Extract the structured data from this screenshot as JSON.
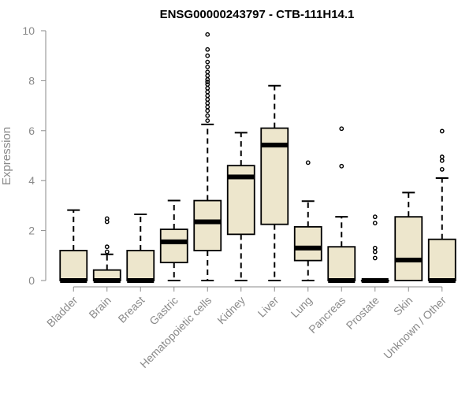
{
  "chart_data": {
    "type": "boxplot",
    "title": "ENSG00000243797 - CTB-111H14.1",
    "xlabel": "",
    "ylabel": "Expression",
    "ylim": [
      0,
      10
    ],
    "yticks": [
      0,
      2,
      4,
      6,
      8,
      10
    ],
    "box_fill": "#ede6cc",
    "categories": [
      "Bladder",
      "Brain",
      "Breast",
      "Gastric",
      "Hematopoietic cells",
      "Kidney",
      "Liver",
      "Lung",
      "Pancreas",
      "Prostate",
      "Skin",
      "Unknown / Other"
    ],
    "boxes": [
      {
        "q1": 0,
        "median": 0,
        "q3": 1.2,
        "whisker_low": 0,
        "whisker_high": 2.82,
        "outliers": []
      },
      {
        "q1": 0,
        "median": 0,
        "q3": 0.42,
        "whisker_low": 0,
        "whisker_high": 1.05,
        "outliers": [
          1.15,
          1.35,
          2.35,
          2.48
        ]
      },
      {
        "q1": 0,
        "median": 0,
        "q3": 1.2,
        "whisker_low": 0,
        "whisker_high": 2.65,
        "outliers": []
      },
      {
        "q1": 0.72,
        "median": 1.55,
        "q3": 2.05,
        "whisker_low": 0,
        "whisker_high": 3.2,
        "outliers": []
      },
      {
        "q1": 1.2,
        "median": 2.35,
        "q3": 3.2,
        "whisker_low": 0,
        "whisker_high": 6.25,
        "outliers": [
          6.4,
          6.6,
          6.8,
          6.95,
          7.1,
          7.25,
          7.4,
          7.55,
          7.7,
          7.85,
          7.95,
          8.05,
          8.2,
          8.35,
          8.55,
          8.75,
          9.0,
          9.25,
          9.85
        ]
      },
      {
        "q1": 1.85,
        "median": 4.15,
        "q3": 4.6,
        "whisker_low": 0,
        "whisker_high": 5.92,
        "outliers": []
      },
      {
        "q1": 2.25,
        "median": 5.42,
        "q3": 6.1,
        "whisker_low": 0,
        "whisker_high": 7.8,
        "outliers": []
      },
      {
        "q1": 0.8,
        "median": 1.3,
        "q3": 2.15,
        "whisker_low": 0,
        "whisker_high": 3.18,
        "outliers": [
          4.72
        ]
      },
      {
        "q1": 0,
        "median": 0,
        "q3": 1.35,
        "whisker_low": 0,
        "whisker_high": 2.55,
        "outliers": [
          4.58,
          6.08
        ]
      },
      {
        "q1": 0,
        "median": 0,
        "q3": 0,
        "whisker_low": 0,
        "whisker_high": 0,
        "outliers": [
          0.9,
          1.15,
          1.3,
          2.3,
          2.55
        ]
      },
      {
        "q1": 0,
        "median": 0.82,
        "q3": 2.55,
        "whisker_low": 0,
        "whisker_high": 3.52,
        "outliers": []
      },
      {
        "q1": 0,
        "median": 0,
        "q3": 1.65,
        "whisker_low": 0,
        "whisker_high": 4.1,
        "outliers": [
          4.45,
          4.8,
          4.95,
          5.98
        ]
      }
    ]
  }
}
